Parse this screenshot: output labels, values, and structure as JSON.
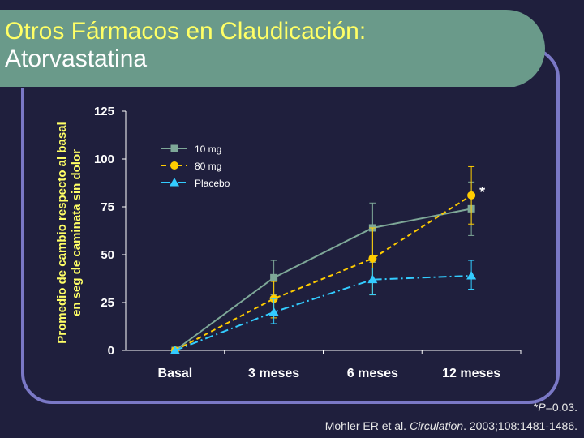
{
  "slide": {
    "title_line1": "Otros Fármacos en Claudicación:",
    "title_line2": "Atorvastatina",
    "footnote_prefix": "*",
    "footnote_p": "P",
    "footnote_rest": "=0.03.",
    "citation_author": "Mohler ER et al. ",
    "citation_journal": "Circulation",
    "citation_rest": ". 2003;108:1481-1486."
  },
  "chart_data": {
    "type": "line",
    "ylabel_line1": "Promedio de cambio respecto al basal",
    "ylabel_line2": "en seg de caminata sin dolor",
    "xlabel": "",
    "categories": [
      "Basal",
      "3 meses",
      "6 meses",
      "12 meses"
    ],
    "ylim": [
      0,
      125
    ],
    "yticks": [
      0,
      25,
      50,
      75,
      100,
      125
    ],
    "grid": false,
    "legend_position": "top-left",
    "series": [
      {
        "name": "10 mg",
        "color": "#7ea898",
        "dash": "solid",
        "marker": "square",
        "values": [
          0,
          38,
          64,
          74
        ],
        "err_low": [
          null,
          29,
          46,
          60
        ],
        "err_high": [
          null,
          47,
          77,
          88
        ]
      },
      {
        "name": "80 mg",
        "color": "#ffcc00",
        "dash": "dashed",
        "marker": "circle",
        "values": [
          0,
          27,
          48,
          81
        ],
        "err_low": [
          null,
          17,
          29,
          66
        ],
        "err_high": [
          null,
          36,
          64,
          96
        ]
      },
      {
        "name": "Placebo",
        "color": "#33ccff",
        "dash": "dashdot",
        "marker": "triangle",
        "values": [
          0,
          20,
          37,
          39
        ],
        "err_low": [
          null,
          14,
          29,
          32
        ],
        "err_high": [
          null,
          27,
          43,
          47
        ]
      }
    ],
    "annotation": "*"
  }
}
